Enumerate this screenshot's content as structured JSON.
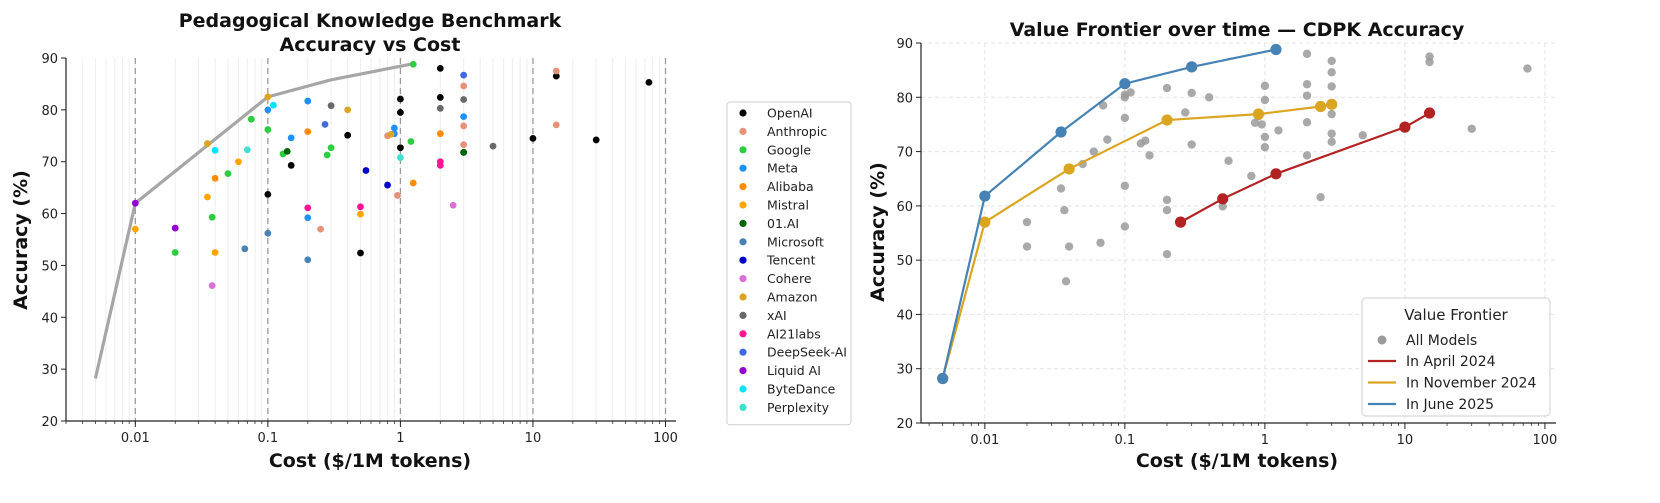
{
  "chart_data": [
    {
      "type": "scatter",
      "title_line1": "Pedagogical Knowledge Benchmark",
      "title_line2": "Accuracy vs Cost",
      "xlabel": "Cost ($/1M tokens)",
      "ylabel": "Accuracy (%)",
      "xscale": "log",
      "xlim": [
        0.003,
        120
      ],
      "ylim": [
        20,
        90
      ],
      "xticks": [
        0.01,
        0.1,
        1,
        10,
        100
      ],
      "xtick_labels": [
        "0.01",
        "0.1",
        "1",
        "10",
        "100"
      ],
      "yticks": [
        20,
        30,
        40,
        50,
        60,
        70,
        80,
        90
      ],
      "ytick_labels": [
        "20",
        "30",
        "40",
        "50",
        "60",
        "70",
        "80",
        "90"
      ],
      "vlines_dashed": [
        0.01,
        0.1,
        1,
        10,
        100
      ],
      "frontier": {
        "color": "#a6a6a6",
        "x": [
          0.005,
          0.01,
          0.1,
          0.3,
          1.2
        ],
        "y": [
          28.2,
          62,
          82.5,
          85.8,
          88.8
        ]
      },
      "legend_position": "right",
      "series": [
        {
          "name": "OpenAI",
          "color": "#000000",
          "x": [
            0.1,
            0.15,
            0.4,
            0.5,
            1.0,
            1.0,
            1.0,
            2.0,
            2.0,
            3.0,
            10,
            15,
            30,
            75
          ],
          "y": [
            63.7,
            69.3,
            75.1,
            52.4,
            72.7,
            79.5,
            82.1,
            82.4,
            88,
            71.8,
            74.5,
            86.5,
            74.2,
            85.3
          ]
        },
        {
          "name": "Anthropic",
          "color": "#e8917a",
          "x": [
            0.25,
            0.8,
            0.95,
            3.0,
            3.0,
            3.0,
            15,
            15
          ],
          "y": [
            57.0,
            75.0,
            63.5,
            73.3,
            76.9,
            84.6,
            77.1,
            87.5
          ]
        },
        {
          "name": "Google",
          "color": "#2ecc40",
          "x": [
            0.02,
            0.038,
            0.05,
            0.075,
            0.1,
            0.13,
            0.3,
            0.28,
            1.2,
            1.25
          ],
          "y": [
            52.5,
            59.3,
            67.7,
            78.2,
            76.2,
            71.5,
            72.7,
            71.3,
            73.9,
            88.8
          ]
        },
        {
          "name": "Meta",
          "color": "#1e90ff",
          "x": [
            0.1,
            0.15,
            0.2,
            0.2,
            0.9,
            0.9,
            3.0
          ],
          "y": [
            80.0,
            74.6,
            81.7,
            59.2,
            76.5,
            75.4,
            78.7
          ]
        },
        {
          "name": "Alibaba",
          "color": "#ff8c00",
          "x": [
            0.04,
            0.2,
            1.25,
            2.0
          ],
          "y": [
            66.8,
            75.8,
            65.9,
            75.4
          ]
        },
        {
          "name": "Mistral",
          "color": "#ffa500",
          "x": [
            0.01,
            0.04,
            0.06,
            0.035,
            0.5
          ],
          "y": [
            57.0,
            52.5,
            70.0,
            63.2,
            59.9
          ]
        },
        {
          "name": "01.AI",
          "color": "#006400",
          "x": [
            0.14,
            3.0
          ],
          "y": [
            72.0,
            71.8
          ]
        },
        {
          "name": "Microsoft",
          "color": "#4682b4",
          "x": [
            0.067,
            0.1,
            0.2
          ],
          "y": [
            53.2,
            56.2,
            51.1
          ]
        },
        {
          "name": "Tencent",
          "color": "#0000cd",
          "x": [
            0.55,
            0.8
          ],
          "y": [
            68.3,
            65.5
          ]
        },
        {
          "name": "Cohere",
          "color": "#da70d6",
          "x": [
            0.038,
            2.5
          ],
          "y": [
            46.1,
            61.6
          ]
        },
        {
          "name": "Amazon",
          "color": "#daa520",
          "x": [
            0.035,
            0.1,
            0.4,
            0.85
          ],
          "y": [
            73.5,
            82.5,
            80.0,
            75.3
          ]
        },
        {
          "name": "xAI",
          "color": "#696969",
          "x": [
            0.3,
            2.0,
            3.0,
            5.0
          ],
          "y": [
            80.8,
            80.3,
            82.0,
            73.0
          ]
        },
        {
          "name": "AI21labs",
          "color": "#ff1493",
          "x": [
            0.2,
            0.5,
            2.0,
            2.0
          ],
          "y": [
            61.1,
            61.3,
            69.3,
            70.0
          ]
        },
        {
          "name": "DeepSeek-AI",
          "color": "#4169e1",
          "x": [
            0.27,
            3.0
          ],
          "y": [
            77.2,
            86.7
          ]
        },
        {
          "name": "Liquid AI",
          "color": "#9400d3",
          "x": [
            0.01,
            0.02
          ],
          "y": [
            62.0,
            57.2
          ]
        },
        {
          "name": "ByteDance",
          "color": "#00e5ff",
          "x": [
            0.04,
            0.11
          ],
          "y": [
            72.2,
            80.9
          ]
        },
        {
          "name": "Perplexity",
          "color": "#40e0d0",
          "x": [
            0.07,
            1.0
          ],
          "y": [
            72.3,
            70.8
          ]
        }
      ]
    },
    {
      "type": "line",
      "title": "Value Frontier over time — CDPK Accuracy",
      "xlabel": "Cost ($/1M tokens)",
      "ylabel": "Accuracy (%)",
      "xscale": "log",
      "xlim": [
        0.0035,
        120
      ],
      "ylim": [
        20,
        90
      ],
      "xticks": [
        0.01,
        0.1,
        1,
        10,
        100
      ],
      "xtick_labels": [
        "0.01",
        "0.1",
        "1",
        "10",
        "100"
      ],
      "yticks": [
        20,
        30,
        40,
        50,
        60,
        70,
        80,
        90
      ],
      "ytick_labels": [
        "20",
        "30",
        "40",
        "50",
        "60",
        "70",
        "80",
        "90"
      ],
      "grid": true,
      "legend_title": "Value Frontier",
      "legend_position": "bottom-right",
      "all_models": {
        "name": "All Models",
        "color": "#9a9a9a",
        "x": [
          0.02,
          0.02,
          0.035,
          0.037,
          0.038,
          0.04,
          0.05,
          0.06,
          0.067,
          0.07,
          0.075,
          0.1,
          0.1,
          0.1,
          0.1,
          0.1,
          0.1,
          0.11,
          0.13,
          0.14,
          0.15,
          0.2,
          0.2,
          0.2,
          0.2,
          0.2,
          0.25,
          0.27,
          0.3,
          0.3,
          0.4,
          0.5,
          0.5,
          0.55,
          0.8,
          0.85,
          0.9,
          0.95,
          1.0,
          1.0,
          1.0,
          1.0,
          1.2,
          1.25,
          2.0,
          2.0,
          2.0,
          2.0,
          2.0,
          2.5,
          3.0,
          3.0,
          3.0,
          3.0,
          3.0,
          3.0,
          3.0,
          5.0,
          15,
          15,
          30,
          75
        ],
        "y": [
          57.0,
          52.5,
          63.2,
          59.2,
          46.1,
          52.5,
          67.7,
          70.0,
          53.2,
          78.5,
          72.2,
          63.7,
          56.2,
          76.2,
          80.0,
          80.5,
          82.5,
          80.9,
          71.5,
          72.0,
          69.3,
          81.7,
          75.8,
          59.2,
          61.1,
          51.1,
          57.0,
          77.2,
          80.8,
          71.3,
          80.0,
          61.3,
          59.9,
          68.3,
          65.5,
          75.3,
          76.5,
          75.0,
          72.7,
          79.5,
          82.1,
          70.8,
          88.8,
          73.9,
          82.4,
          88.0,
          80.3,
          69.3,
          75.4,
          61.6,
          71.8,
          73.3,
          76.9,
          78.7,
          84.6,
          86.7,
          82.0,
          73.0,
          86.5,
          87.5,
          74.2,
          85.3
        ]
      },
      "series": [
        {
          "name": "In April 2024",
          "color": "#b22222",
          "x": [
            0.25,
            0.5,
            1.2,
            10,
            15
          ],
          "y": [
            57.0,
            61.3,
            65.9,
            74.5,
            77.1
          ]
        },
        {
          "name": "In November 2024",
          "color": "#daa520",
          "x": [
            0.005,
            0.01,
            0.04,
            0.2,
            0.9,
            2.5,
            3.0
          ],
          "y": [
            28.2,
            57.0,
            66.8,
            75.8,
            76.9,
            78.3,
            78.7
          ]
        },
        {
          "name": "In June 2025",
          "color": "#4682b4",
          "x": [
            0.005,
            0.01,
            0.035,
            0.1,
            0.3,
            1.2
          ],
          "y": [
            28.2,
            61.8,
            73.6,
            82.5,
            85.6,
            88.8
          ]
        }
      ]
    }
  ]
}
